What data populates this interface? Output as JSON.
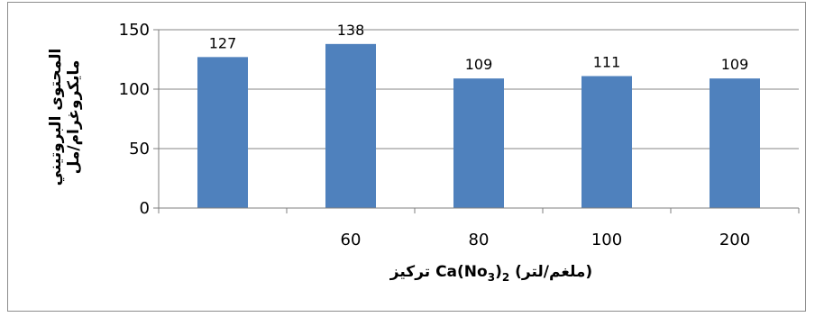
{
  "chart_data": {
    "type": "bar",
    "categories": [
      "",
      "60",
      "80",
      "100",
      "200"
    ],
    "values": [
      127,
      138,
      109,
      111,
      109
    ],
    "data_labels": [
      "127",
      "138",
      "109",
      "111",
      "109"
    ],
    "ylim": [
      0,
      150
    ],
    "yticks": [
      0,
      50,
      100,
      150
    ],
    "ytick_labels": [
      "0",
      "50",
      "100",
      "150"
    ],
    "grid": true,
    "legend": "none",
    "bar_color": "#4f81bd",
    "xlabel_parts": [
      "تركيز ",
      "Ca(No",
      "3",
      ")",
      "2",
      " (ملغم/لتر)"
    ],
    "ylabel_lines": [
      "المحتوى البروتيني",
      "مايكروغرام/مل"
    ]
  }
}
